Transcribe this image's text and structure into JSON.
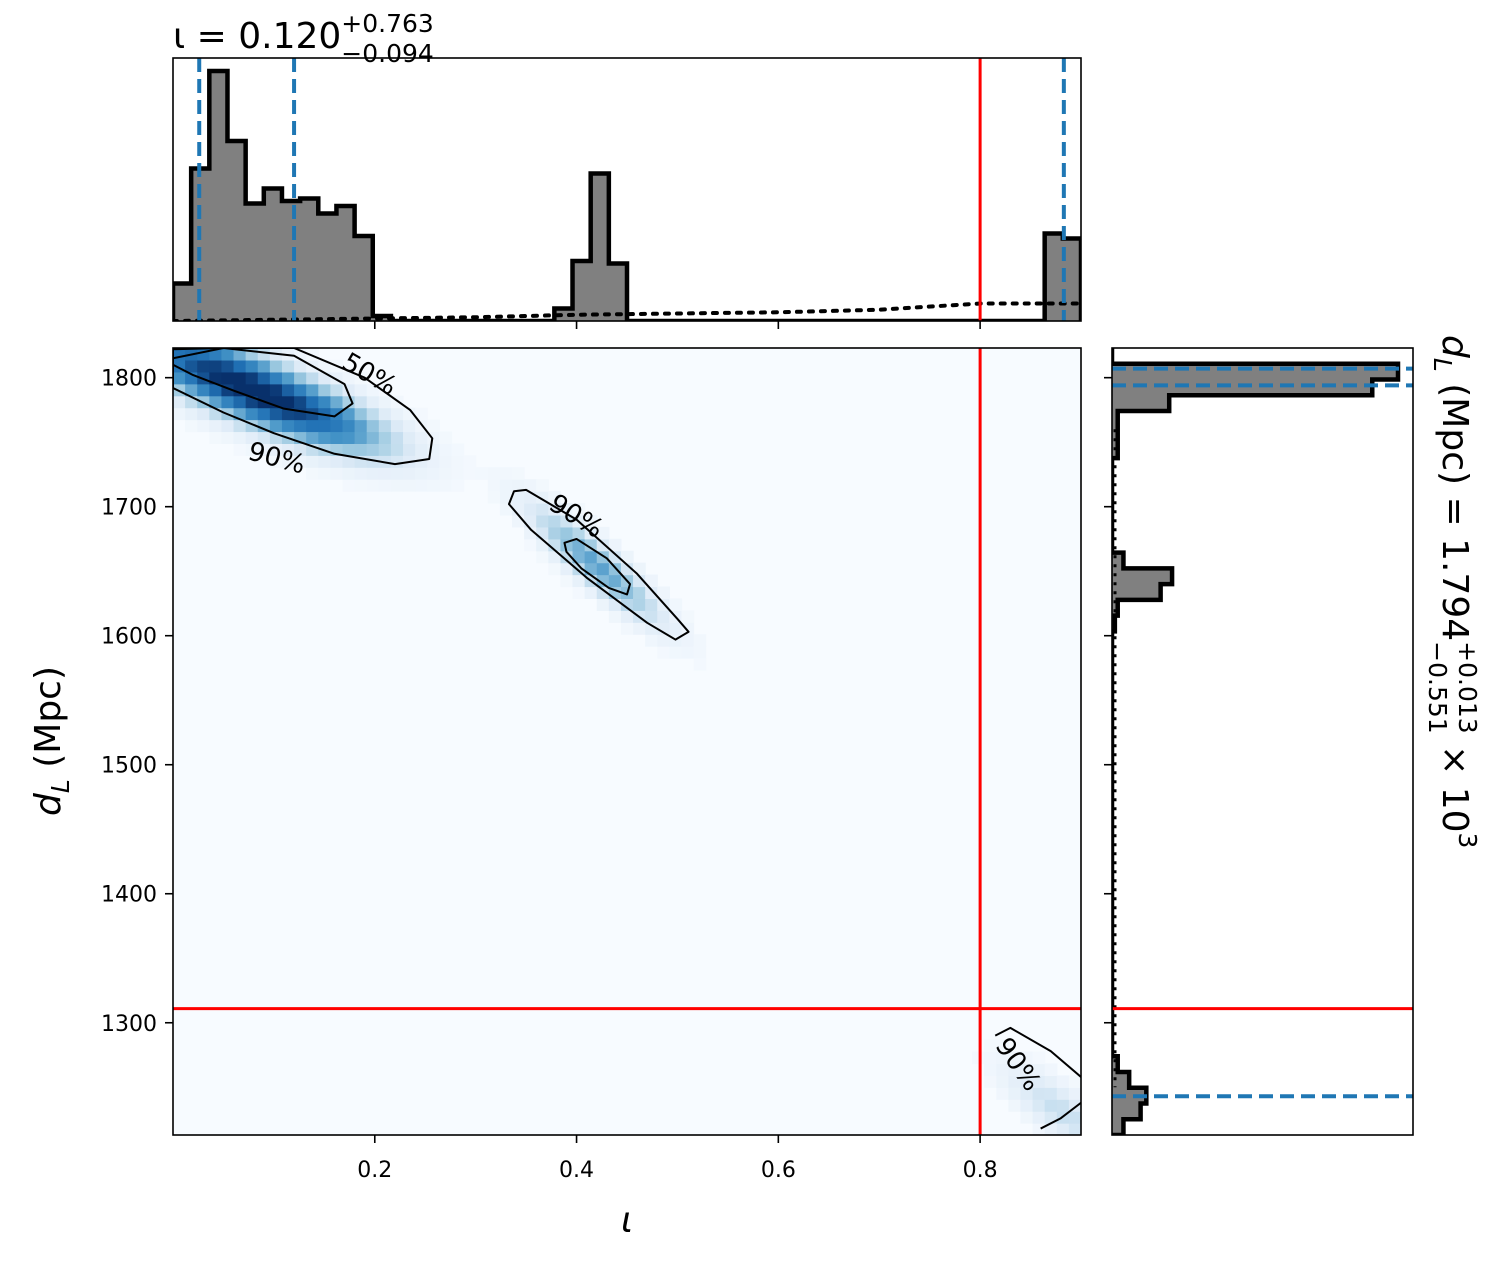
{
  "colors": {
    "histogram_fill": "#808080",
    "histogram_edge": "#000000",
    "quantile_line": "#1f77b4",
    "truth_line": "#ff0000",
    "density_low": "#f7fbff",
    "density_high": "#08306b",
    "contour": "#000000"
  },
  "chart_data": [
    {
      "type": "bar",
      "panel": "top marginal histogram",
      "title": {
        "main": "ι = 0.120",
        "sup": "+0.763",
        "sub": "−0.094"
      },
      "xlim": [
        0.0,
        0.9
      ],
      "bin_edges": [
        0.0,
        0.018,
        0.036,
        0.054,
        0.072,
        0.09,
        0.108,
        0.126,
        0.144,
        0.162,
        0.18,
        0.198,
        0.216,
        0.234,
        0.252,
        0.27,
        0.288,
        0.306,
        0.324,
        0.342,
        0.36,
        0.378,
        0.396,
        0.414,
        0.432,
        0.45,
        0.468,
        0.486,
        0.504,
        0.522,
        0.54,
        0.558,
        0.576,
        0.594,
        0.612,
        0.63,
        0.648,
        0.666,
        0.684,
        0.702,
        0.72,
        0.738,
        0.756,
        0.774,
        0.792,
        0.81,
        0.828,
        0.846,
        0.864,
        0.882,
        0.9
      ],
      "counts": [
        0.15,
        0.61,
        1.0,
        0.72,
        0.47,
        0.53,
        0.48,
        0.49,
        0.43,
        0.46,
        0.34,
        0.02,
        0.0,
        0.0,
        0.0,
        0.0,
        0.0,
        0.0,
        0.0,
        0.0,
        0.0,
        0.05,
        0.24,
        0.59,
        0.23,
        0.0,
        0.0,
        0.0,
        0.0,
        0.0,
        0.0,
        0.0,
        0.0,
        0.0,
        0.0,
        0.0,
        0.0,
        0.0,
        0.0,
        0.0,
        0.0,
        0.0,
        0.0,
        0.0,
        0.0,
        0.0,
        0.0,
        0.0,
        0.35,
        0.33
      ],
      "prior_dotted": {
        "x": [
          0.0,
          0.1,
          0.2,
          0.3,
          0.4,
          0.5,
          0.6,
          0.7,
          0.76,
          0.8,
          0.9
        ],
        "y": [
          0.0,
          0.005,
          0.01,
          0.015,
          0.025,
          0.03,
          0.035,
          0.045,
          0.06,
          0.07,
          0.07
        ]
      },
      "quantile_lines": [
        0.026,
        0.12,
        0.883
      ],
      "truth_line": 0.8
    },
    {
      "type": "heatmap",
      "panel": "joint density",
      "xlabel": "ι",
      "ylabel": {
        "main": "d",
        "sub": "L",
        "rest": " (Mpc)"
      },
      "xlim": [
        0.0,
        0.9
      ],
      "ylim": [
        1213,
        1823
      ],
      "xticks": [
        0.2,
        0.4,
        0.6,
        0.8
      ],
      "xtick_labels": [
        "0.2",
        "0.4",
        "0.6",
        "0.8"
      ],
      "yticks": [
        1300,
        1400,
        1500,
        1600,
        1700,
        1800
      ],
      "ytick_labels": [
        "1300",
        "1400",
        "1500",
        "1600",
        "1700",
        "1800"
      ],
      "truth": {
        "x": 0.8,
        "y": 1311
      },
      "modes": [
        {
          "x": 0.06,
          "y": 1797,
          "sx": 0.07,
          "sy": 28,
          "rho": -0.8,
          "w": 1.0
        },
        {
          "x": 0.15,
          "y": 1770,
          "sx": 0.05,
          "sy": 20,
          "rho": -0.7,
          "w": 0.35
        },
        {
          "x": 0.42,
          "y": 1655,
          "sx": 0.04,
          "sy": 28,
          "rho": -0.9,
          "w": 0.45
        },
        {
          "x": 0.88,
          "y": 1232,
          "sx": 0.035,
          "sy": 22,
          "rho": -0.8,
          "w": 0.18
        }
      ],
      "contours": [
        {
          "label": "50%",
          "points": [
            [
              0.0,
              1822
            ],
            [
              0.05,
              1823
            ],
            [
              0.12,
              1817
            ],
            [
              0.17,
              1795
            ],
            [
              0.178,
              1780
            ],
            [
              0.16,
              1770
            ],
            [
              0.11,
              1776
            ],
            [
              0.06,
              1790
            ],
            [
              0.02,
              1802
            ],
            [
              0.0,
              1810
            ]
          ]
        },
        {
          "label": "90%",
          "points": [
            [
              0.0,
              1815
            ],
            [
              0.05,
              1823
            ],
            [
              0.12,
              1823
            ],
            [
              0.19,
              1800
            ],
            [
              0.235,
              1775
            ],
            [
              0.257,
              1753
            ],
            [
              0.254,
              1737
            ],
            [
              0.22,
              1733
            ],
            [
              0.16,
              1741
            ],
            [
              0.1,
              1757
            ],
            [
              0.05,
              1773
            ],
            [
              0.0,
              1792
            ]
          ]
        },
        {
          "label": "",
          "points": [
            [
              0.388,
              1672
            ],
            [
              0.4,
              1675
            ],
            [
              0.43,
              1660
            ],
            [
              0.453,
              1640
            ],
            [
              0.45,
              1632
            ],
            [
              0.432,
              1637
            ],
            [
              0.405,
              1652
            ],
            [
              0.39,
              1665
            ]
          ]
        },
        {
          "label": "90%",
          "points": [
            [
              0.338,
              1712
            ],
            [
              0.35,
              1713
            ],
            [
              0.4,
              1690
            ],
            [
              0.46,
              1648
            ],
            [
              0.5,
              1613
            ],
            [
              0.511,
              1603
            ],
            [
              0.498,
              1597
            ],
            [
              0.47,
              1610
            ],
            [
              0.41,
              1645
            ],
            [
              0.355,
              1682
            ],
            [
              0.333,
              1702
            ]
          ]
        },
        {
          "label": "90%",
          "points": [
            [
              0.815,
              1290
            ],
            [
              0.83,
              1296
            ],
            [
              0.87,
              1278
            ],
            [
              0.9,
              1258
            ]
          ]
        },
        {
          "label": "",
          "points": [
            [
              0.86,
              1218
            ],
            [
              0.88,
              1226
            ],
            [
              0.9,
              1238
            ]
          ]
        }
      ]
    },
    {
      "type": "bar",
      "panel": "right marginal histogram",
      "title": {
        "main": "d",
        "sub": "L",
        "mid": " (Mpc) = 1.794",
        "sup": "+0.013",
        "subsc": "−0.551",
        "tail": " × 10",
        "exp": "3"
      },
      "ylim": [
        1213,
        1823
      ],
      "bin_edges": [
        1213,
        1225.2,
        1237.4,
        1249.6,
        1261.8,
        1274,
        1286.2,
        1298.4,
        1310.6,
        1322.8,
        1335,
        1347.2,
        1359.4,
        1371.6,
        1383.8,
        1396,
        1408.2,
        1420.4,
        1432.6,
        1444.8,
        1457,
        1469.2,
        1481.4,
        1493.6,
        1505.8,
        1518,
        1530.2,
        1542.4,
        1554.6,
        1566.8,
        1579,
        1591.2,
        1603.4,
        1615.6,
        1627.8,
        1640,
        1652.2,
        1664.4,
        1676.6,
        1688.8,
        1701,
        1713.2,
        1725.4,
        1737.6,
        1749.8,
        1762,
        1774.2,
        1786.4,
        1798.6,
        1810.8,
        1823
      ],
      "counts": [
        0.04,
        0.1,
        0.12,
        0.06,
        0.02,
        0.0,
        0.0,
        0.0,
        0.0,
        0.0,
        0.0,
        0.0,
        0.0,
        0.0,
        0.0,
        0.0,
        0.0,
        0.0,
        0.0,
        0.0,
        0.0,
        0.0,
        0.0,
        0.0,
        0.0,
        0.0,
        0.0,
        0.0,
        0.0,
        0.0,
        0.0,
        0.0,
        0.01,
        0.02,
        0.17,
        0.21,
        0.04,
        0.0,
        0.0,
        0.0,
        0.0,
        0.0,
        0.0,
        0.02,
        0.02,
        0.02,
        0.2,
        0.91,
        1.0,
        0.0
      ],
      "quantile_lines": [
        1243,
        1794,
        1807
      ],
      "truth_line": 1311
    }
  ]
}
